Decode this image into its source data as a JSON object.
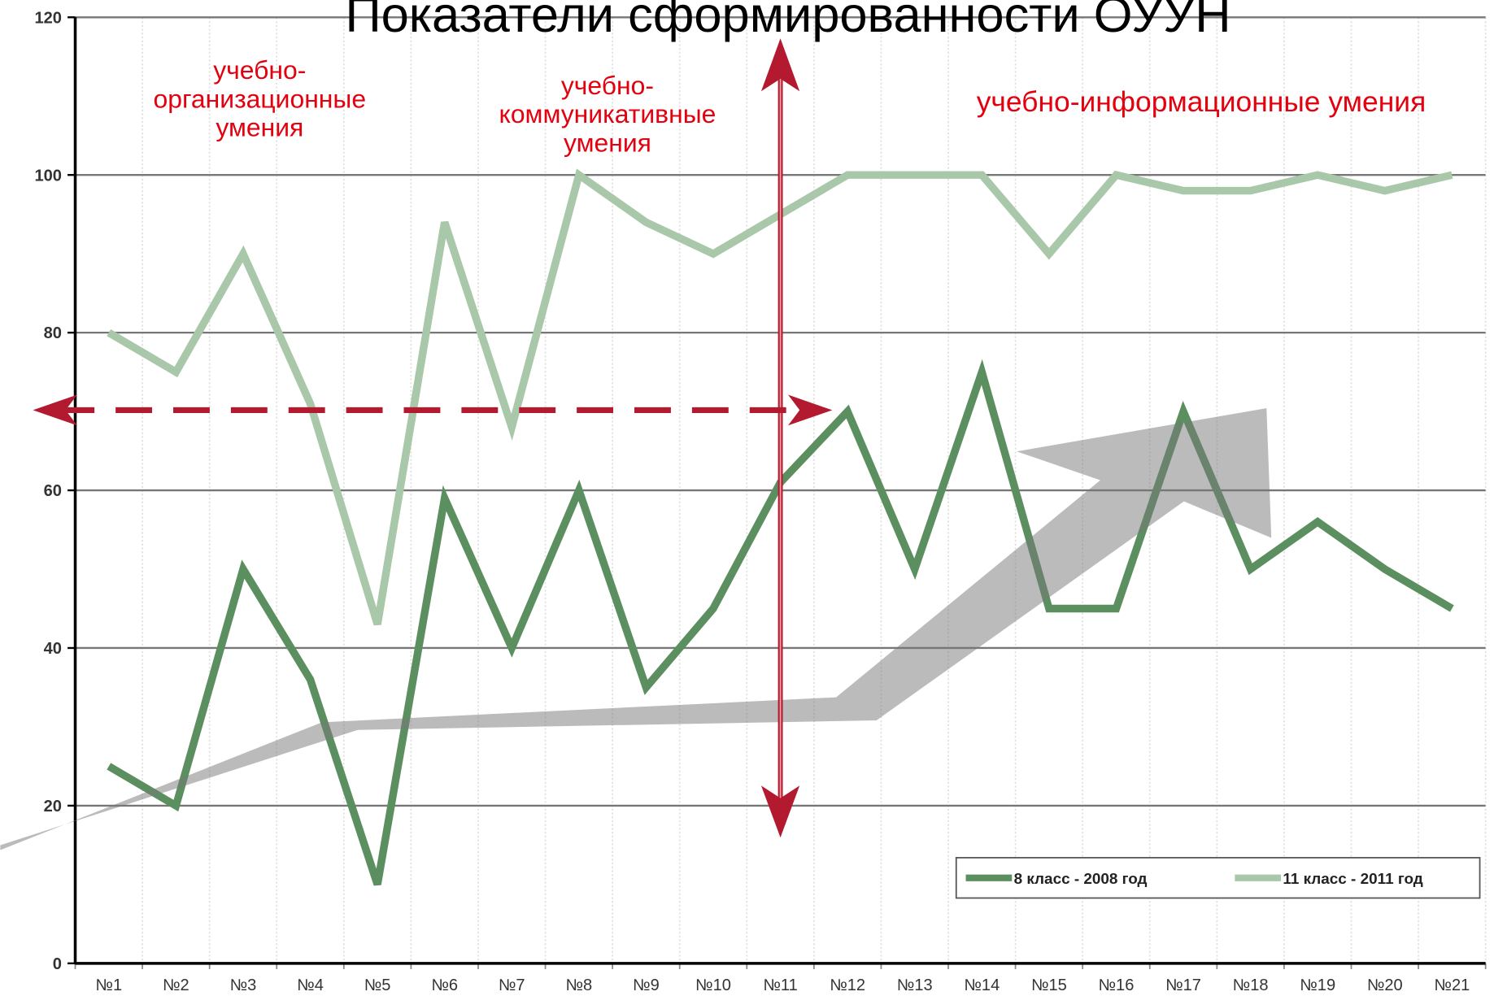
{
  "chart_data": {
    "type": "line",
    "title": "Показатели сформированности ОУУН",
    "categories": [
      "№1",
      "№2",
      "№3",
      "№4",
      "№5",
      "№6",
      "№7",
      "№8",
      "№9",
      "№10",
      "№11",
      "№12",
      "№13",
      "№14",
      "№15",
      "№16",
      "№17",
      "№18",
      "№19",
      "№20",
      "№21"
    ],
    "series": [
      {
        "name": "8 класс - 2008 год",
        "color": "#5c8f60",
        "values": [
          25,
          20,
          50,
          36,
          10,
          59,
          40,
          60,
          35,
          45,
          61,
          70,
          50,
          75,
          45,
          45,
          70,
          50,
          56,
          50,
          45
        ]
      },
      {
        "name": "11 класс - 2011 год",
        "color": "#a9c7a9",
        "values": [
          80,
          75,
          90,
          71,
          43,
          94,
          68,
          100,
          94,
          90,
          95,
          100,
          100,
          100,
          90,
          100,
          98,
          98,
          100,
          98,
          100
        ]
      }
    ],
    "ylim": [
      0,
      120
    ],
    "yticks": [
      0,
      20,
      40,
      60,
      80,
      100,
      120
    ],
    "grid": true,
    "legend": "lower right",
    "annotations": [
      {
        "lines": [
          "учебно-",
          "организационные",
          "умения"
        ]
      },
      {
        "lines": [
          "учебно-",
          "коммуникативные",
          "умения"
        ]
      },
      {
        "lines": [
          "учебно-информационные умения"
        ]
      }
    ]
  }
}
